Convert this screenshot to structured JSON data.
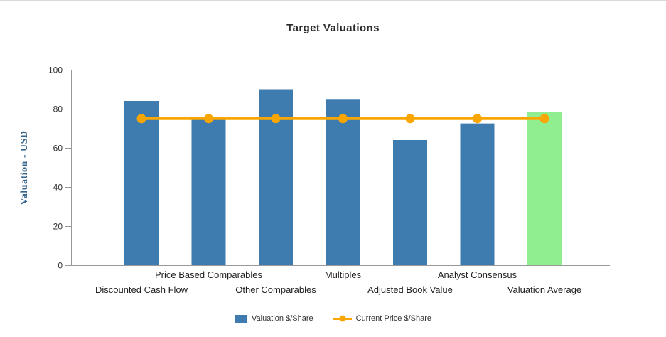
{
  "chart_data": {
    "type": "bar",
    "title": "Target Valuations",
    "xlabel": "",
    "ylabel": "Valuation - USD",
    "ylim": [
      0,
      100
    ],
    "y_ticks": [
      0,
      20,
      40,
      60,
      80,
      100
    ],
    "grid": "horizontal gridline at y=100 only",
    "legend_position": "bottom",
    "categories": [
      "Discounted Cash Flow",
      "Price Based Comparables",
      "Other Comparables",
      "Multiples",
      "Adjusted Book Value",
      "Analyst Consensus",
      "Valuation Average"
    ],
    "series": [
      {
        "name": "Valuation $/Share",
        "type": "column",
        "color": "#3e7cb0",
        "highlight_color": "#90ee90",
        "values": [
          84,
          76,
          90,
          85,
          64,
          72.5,
          78.5
        ],
        "bar_colors": [
          "#3e7cb0",
          "#3e7cb0",
          "#3e7cb0",
          "#3e7cb0",
          "#3e7cb0",
          "#3e7cb0",
          "#90ee90"
        ]
      },
      {
        "name": "Current Price $/Share",
        "type": "line",
        "color": "#f9a602",
        "values": [
          75,
          75,
          75,
          75,
          75,
          75,
          75
        ]
      }
    ],
    "colors": {
      "axis": "#999999",
      "gridline": "#c8c8c8",
      "axis_title": "#36648b",
      "tick_text": "#333333",
      "category_text": "#222222"
    }
  }
}
